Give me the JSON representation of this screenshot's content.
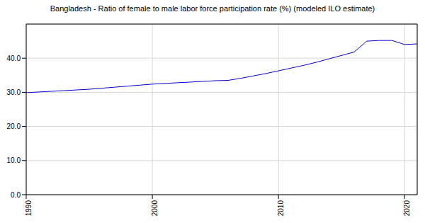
{
  "chart_data": {
    "type": "line",
    "title": "Bangladesh - Ratio of female to male labor force participation rate (%) (modeled ILO estimate)",
    "x": [
      1990,
      1991,
      1992,
      1993,
      1994,
      1995,
      1996,
      1997,
      1998,
      1999,
      2000,
      2001,
      2002,
      2003,
      2004,
      2005,
      2006,
      2007,
      2008,
      2009,
      2010,
      2011,
      2012,
      2013,
      2014,
      2015,
      2016,
      2017,
      2018,
      2019,
      2020,
      2021
    ],
    "values": [
      29.9,
      30.1,
      30.3,
      30.5,
      30.7,
      30.9,
      31.2,
      31.5,
      31.8,
      32.1,
      32.4,
      32.6,
      32.8,
      33.0,
      33.2,
      33.4,
      33.5,
      34.1,
      34.8,
      35.5,
      36.3,
      37.1,
      37.9,
      38.8,
      39.8,
      40.8,
      41.8,
      45.0,
      45.2,
      45.2,
      44.0,
      44.2
    ],
    "color": "#0000cc",
    "xlim": [
      1990,
      2021
    ],
    "xticks": [
      1990,
      2000,
      2010,
      2020
    ],
    "ylim": [
      0,
      50
    ],
    "yticks": [
      {
        "value": 0,
        "label": "0.0"
      },
      {
        "value": 10,
        "label": "10.0"
      },
      {
        "value": 20,
        "label": "20.0"
      },
      {
        "value": 30,
        "label": "30.0"
      },
      {
        "value": 40,
        "label": "40.0"
      }
    ],
    "grid": true
  }
}
